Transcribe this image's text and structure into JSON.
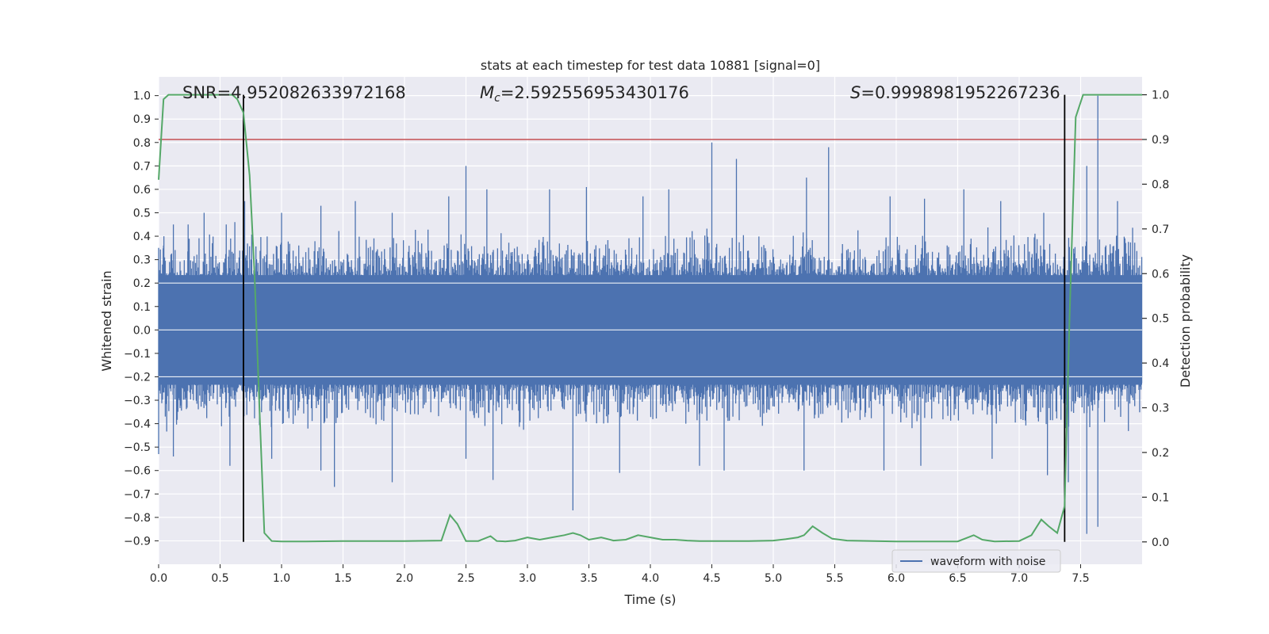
{
  "chart_data": {
    "type": "line",
    "title": "stats at each timestep for test data 10881 [signal=0]",
    "xlabel": "Time (s)",
    "ylabel_left": "Whitened strain",
    "ylabel_right": "Detection probability",
    "xlim": [
      0.0,
      8.0
    ],
    "ylim_left": [
      -1.0,
      1.08
    ],
    "ylim_right": [
      -0.05,
      1.04
    ],
    "x_ticks": [
      "0.0",
      "0.5",
      "1.0",
      "1.5",
      "2.0",
      "2.5",
      "3.0",
      "3.5",
      "4.0",
      "4.5",
      "5.0",
      "5.5",
      "6.0",
      "6.5",
      "7.0",
      "7.5"
    ],
    "x_tick_values": [
      0,
      0.5,
      1,
      1.5,
      2,
      2.5,
      3,
      3.5,
      4,
      4.5,
      5,
      5.5,
      6,
      6.5,
      7,
      7.5
    ],
    "y_left_ticks": [
      "1.0",
      "0.9",
      "0.8",
      "0.7",
      "0.6",
      "0.5",
      "0.4",
      "0.3",
      "0.2",
      "0.1",
      "0.0",
      "−0.1",
      "−0.2",
      "−0.3",
      "−0.4",
      "−0.5",
      "−0.6",
      "−0.7",
      "−0.8",
      "−0.9"
    ],
    "y_left_tick_values": [
      1.0,
      0.9,
      0.8,
      0.7,
      0.6,
      0.5,
      0.4,
      0.3,
      0.2,
      0.1,
      0.0,
      -0.1,
      -0.2,
      -0.3,
      -0.4,
      -0.5,
      -0.6,
      -0.7,
      -0.8,
      -0.9
    ],
    "y_right_ticks": [
      "1.0",
      "0.9",
      "0.8",
      "0.7",
      "0.6",
      "0.5",
      "0.4",
      "0.3",
      "0.2",
      "0.1",
      "0.0"
    ],
    "y_right_tick_values": [
      1.0,
      0.9,
      0.8,
      0.7,
      0.6,
      0.5,
      0.4,
      0.3,
      0.2,
      0.1,
      0.0
    ],
    "annotations": {
      "snr": "SNR=4.952082633972168",
      "mc_symbol": "M",
      "mc_sub": "c",
      "mc_value": "=2.592556953430176",
      "s_symbol": "S",
      "s_value": "=0.9998981952267236"
    },
    "legend": {
      "label": "waveform with noise",
      "location": "lower right"
    },
    "threshold_probability": 0.9,
    "vertical_markers": [
      0.69,
      7.37
    ],
    "waveform": {
      "name": "waveform with noise",
      "x_range": [
        0.0,
        8.0
      ],
      "amplitude_typical": 0.3,
      "positive_spikes": [
        [
          0.0,
          0.35
        ],
        [
          0.04,
          0.36
        ],
        [
          0.12,
          0.45
        ],
        [
          0.24,
          0.45
        ],
        [
          0.37,
          0.5
        ],
        [
          0.55,
          0.45
        ],
        [
          0.62,
          0.46
        ],
        [
          0.7,
          0.55
        ],
        [
          1.0,
          0.5
        ],
        [
          1.32,
          0.53
        ],
        [
          1.6,
          0.55
        ],
        [
          1.9,
          0.5
        ],
        [
          2.36,
          0.57
        ],
        [
          2.5,
          0.7
        ],
        [
          2.67,
          0.6
        ],
        [
          3.18,
          0.6
        ],
        [
          3.48,
          0.61
        ],
        [
          3.94,
          0.57
        ],
        [
          4.15,
          0.6
        ],
        [
          4.5,
          0.8
        ],
        [
          4.7,
          0.73
        ],
        [
          5.27,
          0.65
        ],
        [
          5.45,
          0.78
        ],
        [
          5.95,
          0.57
        ],
        [
          6.23,
          0.56
        ],
        [
          6.55,
          0.6
        ],
        [
          6.85,
          0.55
        ],
        [
          7.2,
          0.5
        ],
        [
          7.55,
          0.7
        ],
        [
          7.64,
          1.0
        ],
        [
          7.8,
          0.55
        ]
      ],
      "negative_spikes": [
        [
          0.0,
          -0.53
        ],
        [
          0.12,
          -0.54
        ],
        [
          0.58,
          -0.58
        ],
        [
          0.92,
          -0.55
        ],
        [
          1.32,
          -0.6
        ],
        [
          1.43,
          -0.67
        ],
        [
          1.9,
          -0.65
        ],
        [
          2.5,
          -0.55
        ],
        [
          2.72,
          -0.64
        ],
        [
          3.37,
          -0.77
        ],
        [
          3.75,
          -0.61
        ],
        [
          4.4,
          -0.58
        ],
        [
          4.6,
          -0.6
        ],
        [
          5.25,
          -0.6
        ],
        [
          5.9,
          -0.6
        ],
        [
          6.2,
          -0.58
        ],
        [
          6.78,
          -0.55
        ],
        [
          7.23,
          -0.62
        ],
        [
          7.4,
          -0.65
        ],
        [
          7.55,
          -0.87
        ],
        [
          7.64,
          -0.84
        ]
      ]
    },
    "probability": {
      "x": [
        0.0,
        0.04,
        0.08,
        0.12,
        0.2,
        0.4,
        0.6,
        0.64,
        0.69,
        0.74,
        0.78,
        0.82,
        0.86,
        0.92,
        1.0,
        1.2,
        1.5,
        2.0,
        2.3,
        2.37,
        2.43,
        2.5,
        2.6,
        2.7,
        2.75,
        2.82,
        2.9,
        3.0,
        3.1,
        3.2,
        3.3,
        3.37,
        3.43,
        3.5,
        3.6,
        3.7,
        3.8,
        3.9,
        4.0,
        4.1,
        4.2,
        4.3,
        4.4,
        4.6,
        4.8,
        5.0,
        5.1,
        5.2,
        5.25,
        5.32,
        5.4,
        5.48,
        5.6,
        6.0,
        6.5,
        6.63,
        6.7,
        6.8,
        7.0,
        7.1,
        7.18,
        7.24,
        7.31,
        7.37,
        7.41,
        7.46,
        7.52,
        7.6,
        7.7,
        7.8,
        8.0
      ],
      "y": [
        0.81,
        0.99,
        1.0,
        1.0,
        1.0,
        1.0,
        1.0,
        0.99,
        0.96,
        0.82,
        0.6,
        0.3,
        0.02,
        0.002,
        0.001,
        0.001,
        0.002,
        0.002,
        0.003,
        0.06,
        0.04,
        0.002,
        0.002,
        0.013,
        0.002,
        0.001,
        0.003,
        0.01,
        0.005,
        0.01,
        0.015,
        0.02,
        0.015,
        0.005,
        0.01,
        0.003,
        0.005,
        0.015,
        0.01,
        0.005,
        0.005,
        0.003,
        0.002,
        0.002,
        0.002,
        0.003,
        0.006,
        0.01,
        0.015,
        0.035,
        0.02,
        0.007,
        0.003,
        0.001,
        0.001,
        0.015,
        0.005,
        0.001,
        0.002,
        0.015,
        0.05,
        0.035,
        0.02,
        0.08,
        0.5,
        0.95,
        1.0,
        1.0,
        1.0,
        1.0,
        1.0
      ]
    },
    "colors": {
      "background": "#eaeaf2",
      "grid": "#ffffff",
      "waveform": "#4c72b0",
      "probability": "#55a868",
      "threshold": "#c44e52",
      "marker": "#000000",
      "text": "#262626"
    }
  }
}
